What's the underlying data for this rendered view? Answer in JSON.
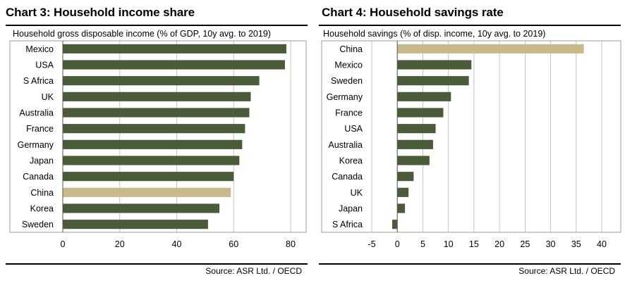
{
  "chart_data": [
    {
      "type": "bar",
      "orientation": "horizontal",
      "title": "Chart 3: Household income share",
      "subtitle": "Household gross disposable income (% of GDP, 10y avg. to 2019)",
      "categories": [
        "Mexico",
        "USA",
        "S Africa",
        "UK",
        "Australia",
        "France",
        "Germany",
        "Japan",
        "Canada",
        "China",
        "Korea",
        "Sweden"
      ],
      "values": [
        78.5,
        78,
        69,
        66,
        65.5,
        64,
        63,
        62,
        60,
        59,
        55,
        51
      ],
      "highlight": "China",
      "xlim": [
        0,
        80
      ],
      "xticks": [
        "0",
        "20",
        "40",
        "60",
        "80"
      ],
      "xtick_values": [
        0,
        20,
        40,
        60,
        80
      ],
      "grid": "vertical",
      "colors": {
        "bar": "#4a5b3a",
        "highlight": "#c8b88a"
      },
      "source": "Source: ASR Ltd. / OECD"
    },
    {
      "type": "bar",
      "orientation": "horizontal",
      "title": "Chart 4: Household savings rate",
      "subtitle": "Household savings (% of disp. income, 10y avg. to 2019)",
      "categories": [
        "China",
        "Mexico",
        "Sweden",
        "Germany",
        "France",
        "USA",
        "Australia",
        "Korea",
        "Canada",
        "UK",
        "Japan",
        "S Africa"
      ],
      "values": [
        36.5,
        14.5,
        14,
        10.5,
        9,
        7.5,
        7,
        6.3,
        3.2,
        2.2,
        1.5,
        -1
      ],
      "highlight": "China",
      "xlim": [
        -5,
        40
      ],
      "xticks": [
        "-5",
        "0",
        "5",
        "10",
        "15",
        "20",
        "25",
        "30",
        "35",
        "40"
      ],
      "xtick_values": [
        -5,
        0,
        5,
        10,
        15,
        20,
        25,
        30,
        35,
        40
      ],
      "grid": "vertical",
      "colors": {
        "bar": "#4a5b3a",
        "highlight": "#c8b88a"
      },
      "source": "Source: ASR Ltd. / OECD"
    }
  ]
}
